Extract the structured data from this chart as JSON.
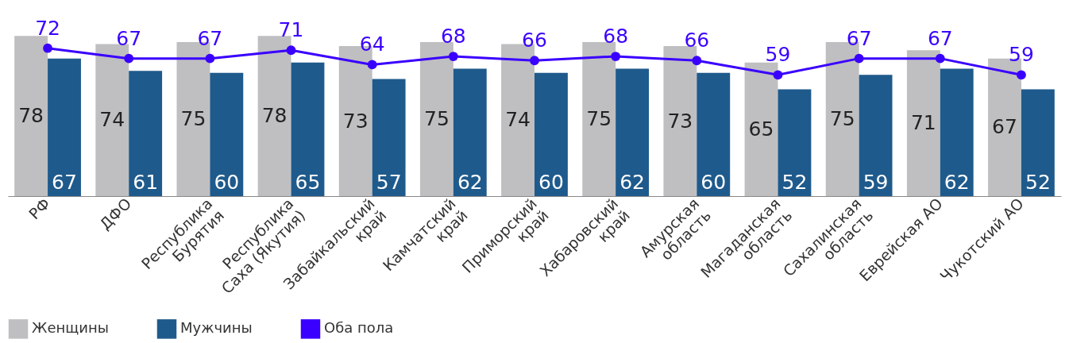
{
  "chart_data": {
    "type": "bar",
    "categories": [
      "РФ",
      "ДФО",
      "Республика\nБурятия",
      "Республика\nСаха (Якутия)",
      "Забайкальский\nкрай",
      "Камчатский\nкрай",
      "Приморский\nкрай",
      "Хабаровский\nкрай",
      "Амурская\nобласть",
      "Магаданская\nобласть",
      "Сахалинская\nобласть",
      "Еврейская АО",
      "Чукотский АО"
    ],
    "series": [
      {
        "name": "Женщины",
        "color": "#bfbfc1",
        "values": [
          78,
          74,
          75,
          78,
          73,
          75,
          74,
          75,
          73,
          65,
          75,
          71,
          67
        ]
      },
      {
        "name": "Мужчины",
        "color": "#1f5a8c",
        "values": [
          67,
          61,
          60,
          65,
          57,
          62,
          60,
          62,
          60,
          52,
          59,
          62,
          52
        ]
      },
      {
        "name": "Оба пола",
        "type": "line",
        "color": "#3a00ff",
        "marker": "circle",
        "values": [
          72,
          67,
          67,
          71,
          64,
          68,
          66,
          68,
          66,
          59,
          67,
          67,
          59
        ]
      }
    ],
    "tick_labels": "x",
    "data_labels": true,
    "legend": "bottom"
  }
}
